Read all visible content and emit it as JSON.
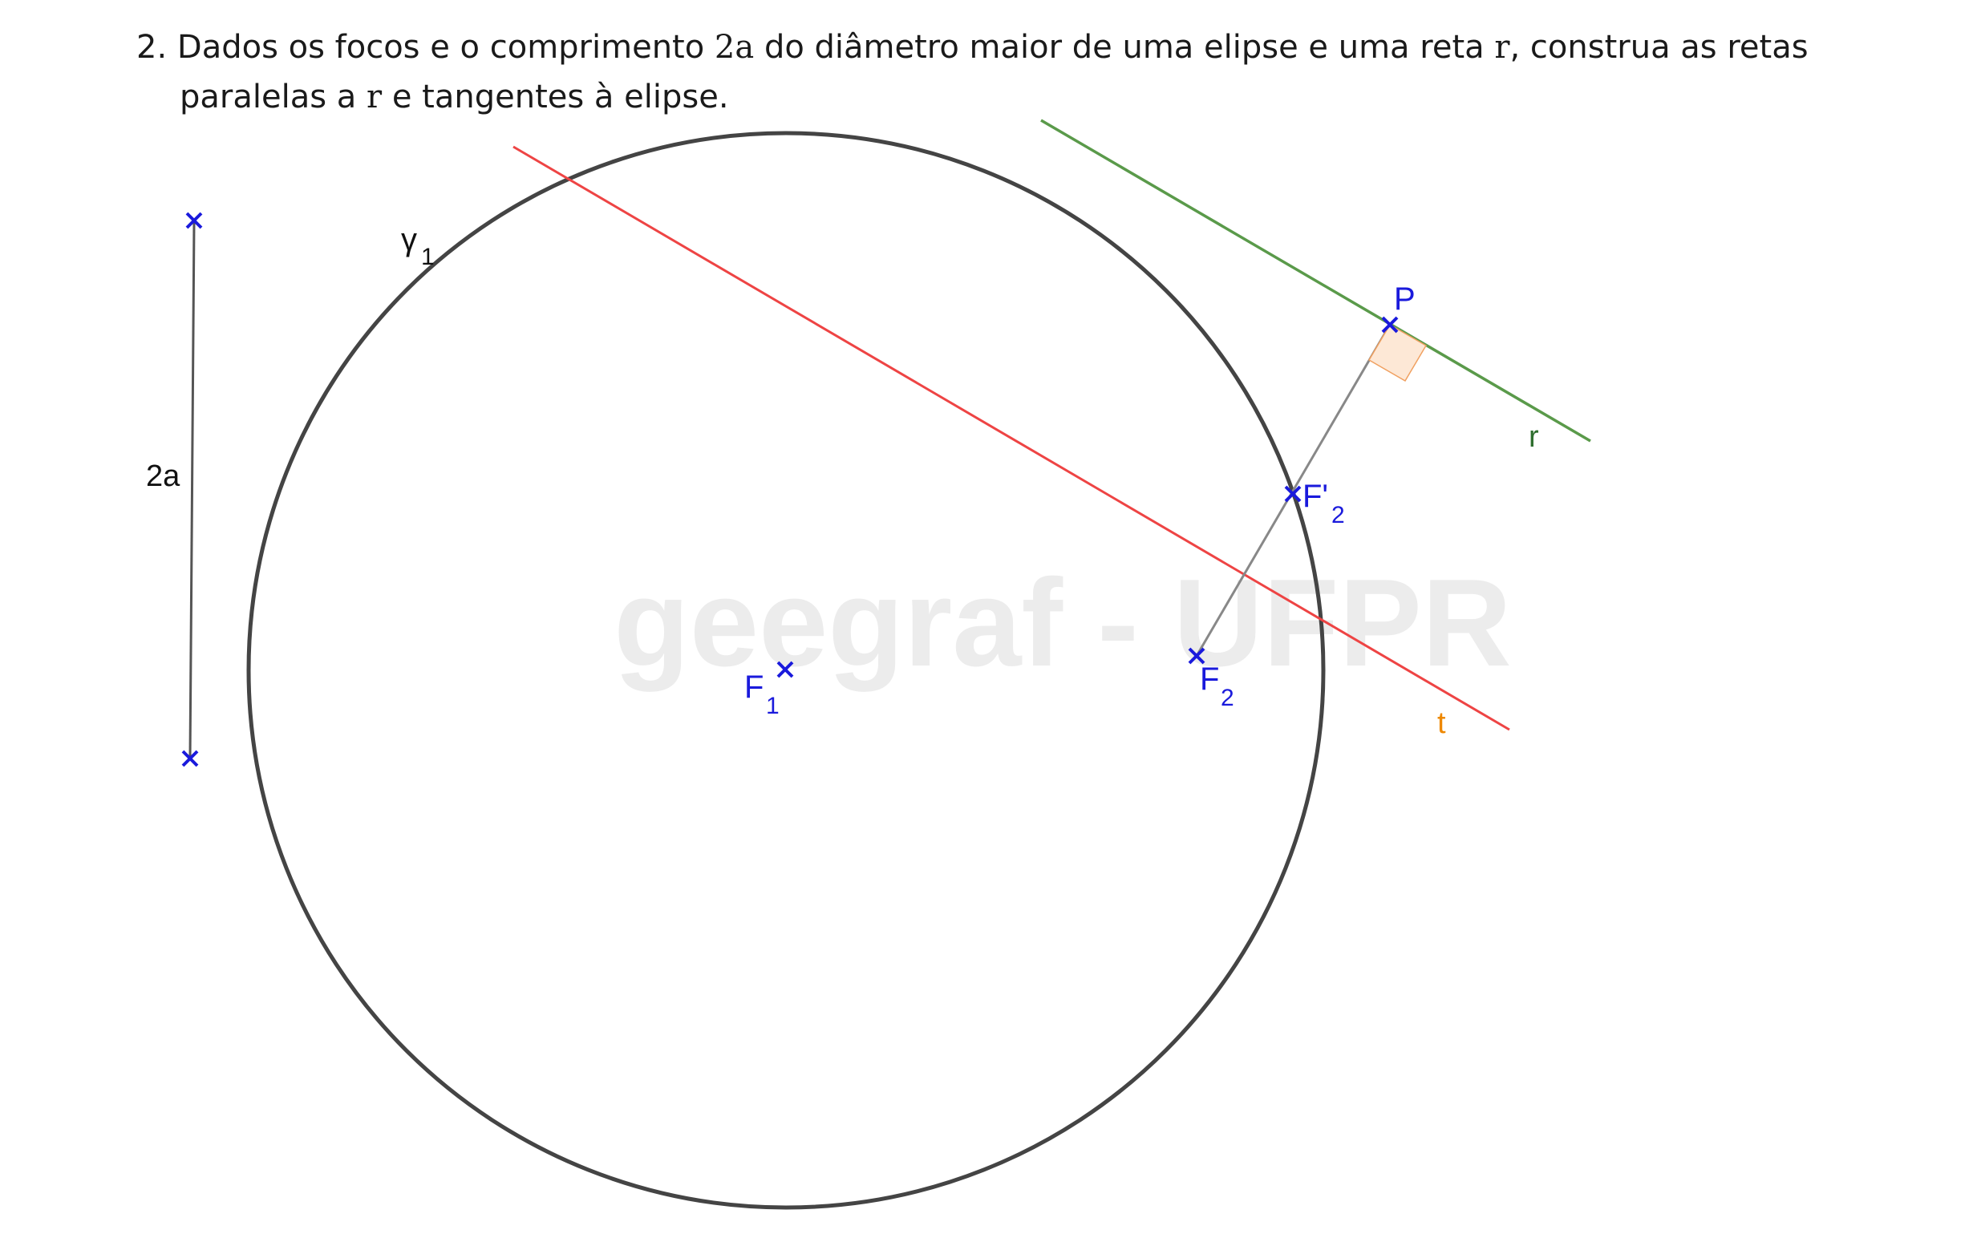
{
  "problem": {
    "number": "2.",
    "text_part1": "Dados os focos e o comprimento",
    "symbol_2a": "2a",
    "text_part2": "do diâmetro maior de uma elipse e uma reta",
    "symbol_r1": "r",
    "text_part3": ", construa as retas",
    "text_part4": "paralelas a",
    "symbol_r2": "r",
    "text_part5": "e tangentes à elipse."
  },
  "watermark": "geegraf - UFPR",
  "labels": {
    "segment_2a": "2a",
    "circle": "γ",
    "circle_sub": "1",
    "f1": "F",
    "f1_sub": "1",
    "f2": "F",
    "f2_sub": "2",
    "f2_prime": "F'",
    "f2_prime_sub": "2",
    "p": "P",
    "line_r": "r",
    "line_t": "t"
  },
  "colors": {
    "circle": "#444444",
    "line_r": "#5a9a4a",
    "line_t": "#ee4444",
    "points": "#1a1adc",
    "label_r": "#2e6e2e",
    "label_t": "#ee8800",
    "right_angle_fill": "#fde8d6",
    "right_angle_stroke": "#f0a060",
    "watermark": "#ececec"
  }
}
